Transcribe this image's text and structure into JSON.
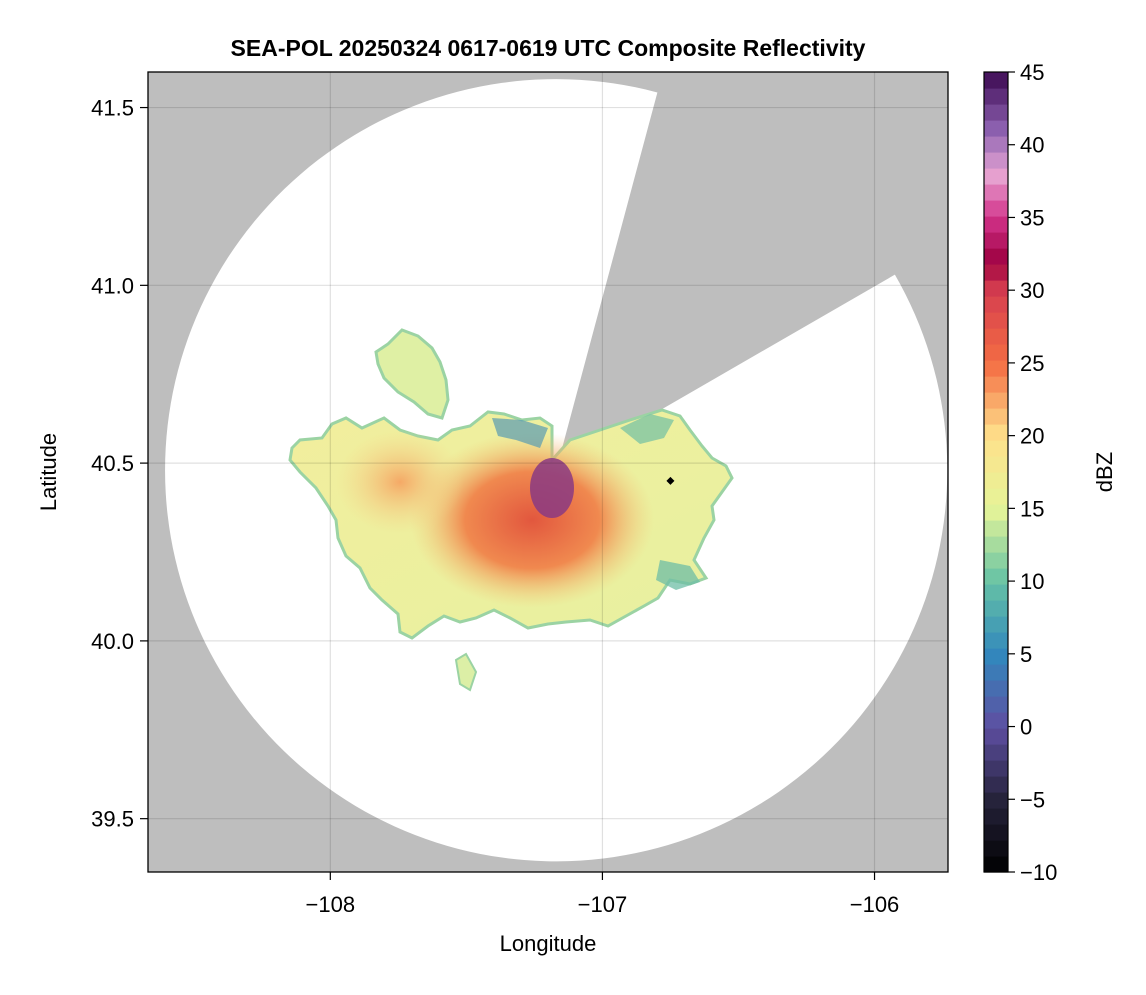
{
  "chart_data": {
    "type": "heatmap",
    "title": "SEA-POL 20250324 0617-0619 UTC Composite Reflectivity",
    "xlabel": "Longitude",
    "ylabel": "Latitude",
    "xlim": [
      -108.67,
      -105.73
    ],
    "ylim": [
      39.35,
      41.6
    ],
    "x_ticks": [
      {
        "value": -108,
        "label": "−108"
      },
      {
        "value": -107,
        "label": "−107"
      },
      {
        "value": -106,
        "label": "−106"
      }
    ],
    "y_ticks": [
      {
        "value": 41.5,
        "label": "41.5"
      },
      {
        "value": 41.0,
        "label": "41.0"
      },
      {
        "value": 40.5,
        "label": "40.5"
      },
      {
        "value": 40.0,
        "label": "40.0"
      },
      {
        "value": 39.5,
        "label": "39.5"
      }
    ],
    "grid": true,
    "background_color": "#bebebe",
    "radar": {
      "center_lon": -107.17,
      "center_lat": 40.48,
      "range_deg_lat": 1.1,
      "blocked_sector_bearings": [
        [
          15,
          60
        ]
      ]
    },
    "echo_region": {
      "approx_lon_range": [
        -108.12,
        -106.52
      ],
      "approx_lat_range": [
        39.82,
        40.87
      ],
      "max_dbz": 44,
      "core_lon": -107.35,
      "core_lat": 40.33
    },
    "marker": {
      "lon": -106.75,
      "lat": 40.45,
      "shape": "diamond",
      "color": "#000000"
    },
    "colorbar": {
      "label": "dBZ",
      "min": -10,
      "max": 45,
      "colormap": "spectral_r",
      "ticks": [
        {
          "value": 45,
          "label": "45"
        },
        {
          "value": 40,
          "label": "40"
        },
        {
          "value": 35,
          "label": "35"
        },
        {
          "value": 30,
          "label": "30"
        },
        {
          "value": 25,
          "label": "25"
        },
        {
          "value": 20,
          "label": "20"
        },
        {
          "value": 15,
          "label": "15"
        },
        {
          "value": 10,
          "label": "10"
        },
        {
          "value": 5,
          "label": "5"
        },
        {
          "value": 0,
          "label": "0"
        },
        {
          "value": -5,
          "label": "−5"
        },
        {
          "value": -10,
          "label": "−10"
        }
      ],
      "stops": [
        {
          "dbz": -10,
          "color": "#000000"
        },
        {
          "dbz": -5,
          "color": "#26233c"
        },
        {
          "dbz": 0,
          "color": "#5e4fa2"
        },
        {
          "dbz": 5,
          "color": "#3288bd"
        },
        {
          "dbz": 10,
          "color": "#66c2a5"
        },
        {
          "dbz": 15,
          "color": "#e6f598"
        },
        {
          "dbz": 20,
          "color": "#fee08b"
        },
        {
          "dbz": 25,
          "color": "#f46d43"
        },
        {
          "dbz": 30,
          "color": "#d53e4f"
        },
        {
          "dbz": 32,
          "color": "#9e0142"
        },
        {
          "dbz": 35,
          "color": "#d2338a"
        },
        {
          "dbz": 38,
          "color": "#e7a6d3"
        },
        {
          "dbz": 41,
          "color": "#8e62b2"
        },
        {
          "dbz": 45,
          "color": "#3d0a52"
        }
      ]
    }
  }
}
